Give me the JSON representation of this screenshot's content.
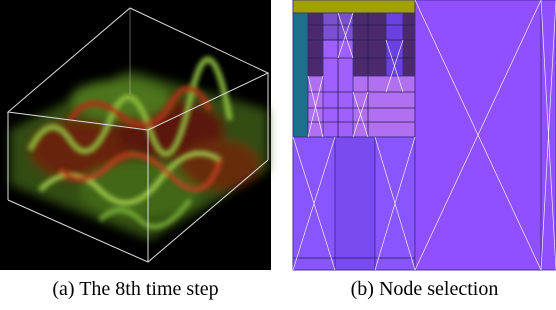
{
  "figure": {
    "subfigures": [
      {
        "caption": "(a) The 8th time step"
      },
      {
        "caption": "(b) Node selection"
      }
    ]
  }
}
